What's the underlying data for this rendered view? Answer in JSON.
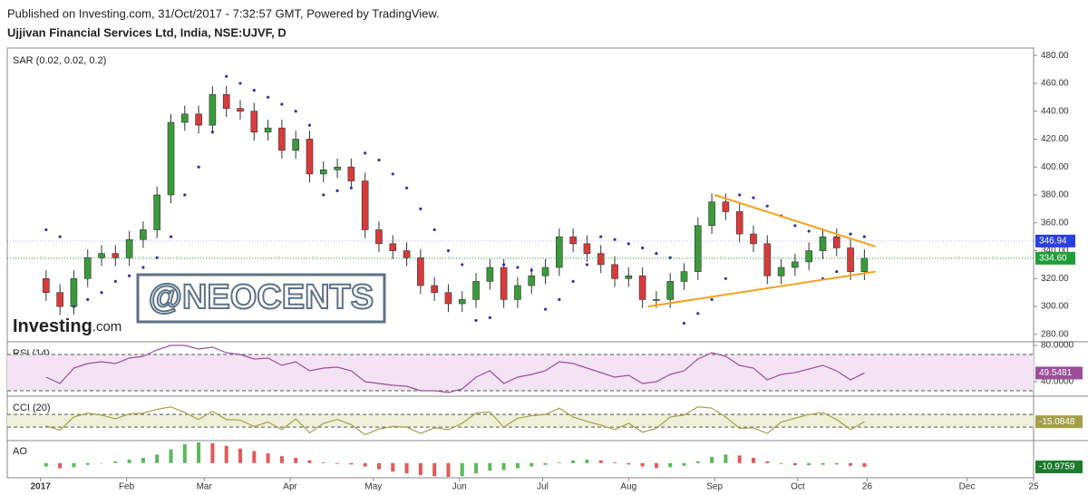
{
  "chart_data": {
    "type": "candlestick",
    "source": "Published on Investing.com, 31/Oct/2017 - 7:32:57 GMT, Powered by TradingView.",
    "title": "Ujjivan Financial Services Ltd, India, NSE:UJVF, D",
    "watermark": "@NEOCENTS",
    "logo": {
      "name": "Investing",
      "suffix": ".com"
    },
    "up_color": "#3b9a3b",
    "down_color": "#d93a3a",
    "x": [
      2,
      7,
      12,
      17,
      22,
      27,
      32,
      37,
      42,
      47,
      52,
      57,
      62,
      67,
      72,
      77,
      82,
      87,
      92,
      97,
      102,
      107,
      112,
      117,
      122,
      127,
      132,
      137,
      142,
      147,
      152,
      157,
      162,
      167,
      172,
      177,
      182,
      187,
      192,
      197,
      202,
      207,
      212,
      217,
      222,
      227,
      232,
      237,
      242,
      247,
      252,
      257,
      262,
      267,
      272,
      277,
      282,
      287,
      292,
      297
    ],
    "open": [
      320,
      310,
      300,
      320,
      335,
      338,
      335,
      348,
      355,
      380,
      432,
      438,
      430,
      452,
      442,
      440,
      425,
      428,
      412,
      420,
      395,
      398,
      400,
      390,
      355,
      345,
      340,
      335,
      315,
      310,
      302,
      305,
      318,
      328,
      305,
      315,
      322,
      328,
      350,
      345,
      338,
      330,
      320,
      322,
      305,
      305,
      318,
      325,
      358,
      375,
      368,
      352,
      345,
      322,
      328,
      332,
      340,
      350,
      342,
      325
    ],
    "high": [
      326,
      316,
      326,
      341,
      344,
      344,
      354,
      361,
      386,
      438,
      444,
      444,
      458,
      458,
      448,
      446,
      434,
      434,
      426,
      426,
      404,
      406,
      406,
      396,
      361,
      351,
      346,
      341,
      321,
      316,
      311,
      324,
      334,
      334,
      321,
      328,
      334,
      356,
      356,
      351,
      344,
      336,
      328,
      328,
      311,
      324,
      331,
      364,
      381,
      381,
      374,
      358,
      351,
      334,
      338,
      346,
      356,
      356,
      348,
      341
    ],
    "low": [
      304,
      294,
      294,
      314,
      329,
      329,
      329,
      342,
      349,
      374,
      426,
      424,
      424,
      436,
      434,
      419,
      419,
      406,
      406,
      389,
      389,
      392,
      384,
      349,
      339,
      334,
      329,
      309,
      304,
      296,
      296,
      299,
      312,
      299,
      299,
      309,
      316,
      322,
      339,
      332,
      324,
      314,
      314,
      299,
      299,
      299,
      312,
      319,
      352,
      362,
      346,
      339,
      316,
      316,
      322,
      326,
      334,
      336,
      319,
      319
    ],
    "close": [
      310,
      300,
      320,
      335,
      338,
      335,
      348,
      355,
      380,
      432,
      438,
      430,
      452,
      442,
      440,
      425,
      428,
      412,
      420,
      395,
      398,
      400,
      390,
      355,
      345,
      340,
      335,
      315,
      310,
      302,
      305,
      318,
      328,
      305,
      315,
      322,
      328,
      350,
      345,
      338,
      330,
      320,
      322,
      305,
      305,
      318,
      325,
      358,
      375,
      368,
      352,
      345,
      322,
      328,
      332,
      340,
      350,
      342,
      325,
      334.6
    ],
    "sar": {
      "name": "SAR (0.02, 0.02, 0.2)",
      "color": "#3333aa",
      "values": [
        355,
        350,
        300,
        305,
        310,
        318,
        322,
        328,
        335,
        350,
        380,
        400,
        425,
        465,
        460,
        455,
        450,
        445,
        440,
        430,
        380,
        383,
        385,
        410,
        405,
        395,
        385,
        370,
        355,
        340,
        330,
        290,
        292,
        330,
        328,
        326,
        298,
        305,
        318,
        330,
        350,
        348,
        345,
        342,
        338,
        335,
        288,
        295,
        305,
        320,
        380,
        378,
        372,
        365,
        358,
        354,
        320,
        325,
        352,
        350
      ]
    },
    "xlim": [
      -12,
      358
    ],
    "xticks": [
      {
        "value": 0,
        "label": "2017"
      },
      {
        "value": 31,
        "label": "Feb"
      },
      {
        "value": 59,
        "label": "Mar"
      },
      {
        "value": 90,
        "label": "Apr"
      },
      {
        "value": 120,
        "label": "May"
      },
      {
        "value": 151,
        "label": "Jun"
      },
      {
        "value": 181,
        "label": "Jul"
      },
      {
        "value": 212,
        "label": "Aug"
      },
      {
        "value": 243,
        "label": "Sep"
      },
      {
        "value": 273,
        "label": "Oct"
      },
      {
        "value": 298,
        "label": "26"
      },
      {
        "value": 334,
        "label": "Dec"
      },
      {
        "value": 358,
        "label": "25"
      }
    ],
    "ylim": [
      276,
      484
    ],
    "yticks": [
      {
        "value": 280,
        "label": "280.00"
      },
      {
        "value": 300,
        "label": "300.00"
      },
      {
        "value": 320,
        "label": "320.00"
      },
      {
        "value": 340,
        "label": "340.00"
      },
      {
        "value": 360,
        "label": "360.00"
      },
      {
        "value": 380,
        "label": "380.00"
      },
      {
        "value": 400,
        "label": "400.00"
      },
      {
        "value": 420,
        "label": "420.00"
      },
      {
        "value": 440,
        "label": "440.00"
      },
      {
        "value": 460,
        "label": "460.00"
      },
      {
        "value": 480,
        "label": "480.00"
      }
    ],
    "trendlines": {
      "color": "#f5a11f",
      "lines": [
        {
          "x": [
            243,
            301
          ],
          "y": [
            380,
            343
          ]
        },
        {
          "x": [
            219,
            301
          ],
          "y": [
            300,
            325
          ]
        }
      ]
    },
    "price_labels": {
      "values": [
        346.94,
        334.6
      ],
      "value_labels": [
        "346.94",
        "334.60"
      ],
      "colors": [
        "#2a3fe0",
        "#1f9e3a"
      ]
    },
    "grid": false,
    "indicators": [
      {
        "name": "RSI (14)",
        "type": "line",
        "color": "#9b4f9b",
        "band_color": "#f4e3f4",
        "values": [
          45,
          38,
          55,
          60,
          62,
          60,
          66,
          68,
          75,
          80,
          80,
          76,
          78,
          72,
          70,
          65,
          66,
          58,
          62,
          52,
          55,
          56,
          52,
          40,
          38,
          36,
          35,
          30,
          30,
          28,
          32,
          45,
          52,
          38,
          45,
          48,
          52,
          62,
          60,
          55,
          50,
          45,
          47,
          38,
          40,
          48,
          52,
          65,
          72,
          68,
          58,
          55,
          42,
          48,
          50,
          54,
          58,
          52,
          42,
          49.5481
        ],
        "ylim": [
          26,
          81
        ],
        "yticks": [
          {
            "value": 80,
            "label": "80.0000"
          },
          {
            "value": 40,
            "label": "40.0000"
          }
        ],
        "bands": [
          70,
          30
        ]
      },
      {
        "name": "CCI (20)",
        "type": "line",
        "color": "#a3a04a",
        "band_color": "#eef0d9",
        "values": [
          -80,
          -150,
          60,
          120,
          90,
          30,
          110,
          120,
          180,
          220,
          130,
          20,
          150,
          20,
          10,
          -90,
          -20,
          -140,
          30,
          -190,
          -40,
          20,
          -60,
          -220,
          -130,
          -90,
          -100,
          -200,
          -110,
          -140,
          -40,
          120,
          140,
          -100,
          40,
          80,
          100,
          200,
          60,
          -10,
          -70,
          -140,
          -40,
          -180,
          -120,
          60,
          90,
          220,
          200,
          60,
          -120,
          -110,
          -200,
          -20,
          40,
          100,
          130,
          20,
          -140,
          -15.0848
        ],
        "ylim": [
          -285,
          346
        ],
        "yticks": [],
        "bands": [
          100,
          -100
        ]
      },
      {
        "name": "AO",
        "type": "histogram",
        "color": "#5cb85c",
        "down_color": "#e05a5a",
        "values": [
          -10,
          -15,
          -12,
          -5,
          0,
          5,
          10,
          15,
          25,
          40,
          55,
          60,
          58,
          50,
          42,
          35,
          28,
          20,
          15,
          8,
          2,
          -2,
          -4,
          -10,
          -18,
          -25,
          -30,
          -35,
          -38,
          -40,
          -38,
          -30,
          -22,
          -20,
          -15,
          -10,
          -5,
          2,
          8,
          10,
          8,
          2,
          -4,
          -10,
          -14,
          -12,
          -8,
          5,
          18,
          25,
          22,
          15,
          5,
          -2,
          -6,
          -6,
          -5,
          -4,
          -8,
          -10.9759
        ],
        "ylim": [
          -40,
          60
        ],
        "yticks": [],
        "bands": []
      }
    ]
  }
}
